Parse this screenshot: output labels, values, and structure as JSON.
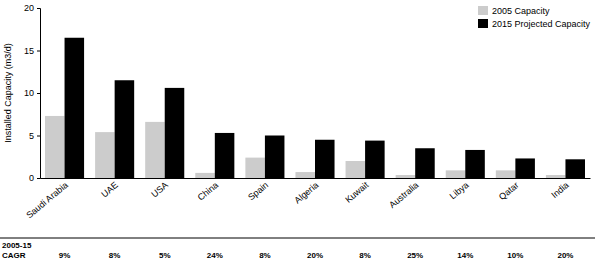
{
  "chart_data": {
    "type": "bar",
    "y_label": "Installed Capacity (m3/d)",
    "categories": [
      "Saudi Arabia",
      "UAE",
      "USA",
      "China",
      "Spain",
      "Algeria",
      "Kuwait",
      "Australia",
      "Libya",
      "Qatar",
      "India"
    ],
    "series": [
      {
        "name": "2005 Capacity",
        "color": "#cccccc",
        "values": [
          7.3,
          5.4,
          6.6,
          0.6,
          2.4,
          0.7,
          2.0,
          0.35,
          0.9,
          0.9,
          0.35
        ]
      },
      {
        "name": "2015 Projected Capacity",
        "color": "#000000",
        "values": [
          16.5,
          11.5,
          10.6,
          5.3,
          5.0,
          4.5,
          4.4,
          3.5,
          3.3,
          2.3,
          2.2
        ]
      }
    ],
    "ylim": [
      0,
      20
    ],
    "yticks": [
      0,
      5,
      10,
      15,
      20
    ],
    "grid": false,
    "legend": "top-right",
    "cagr_title": [
      "2005-15",
      "CAGR"
    ],
    "cagr": [
      9,
      8,
      5,
      24,
      8,
      20,
      8,
      25,
      14,
      10,
      20
    ],
    "cagr_labels": [
      "9%",
      "8%",
      "5%",
      "24%",
      "8%",
      "20%",
      "8%",
      "25%",
      "14%",
      "10%",
      "20%"
    ]
  }
}
